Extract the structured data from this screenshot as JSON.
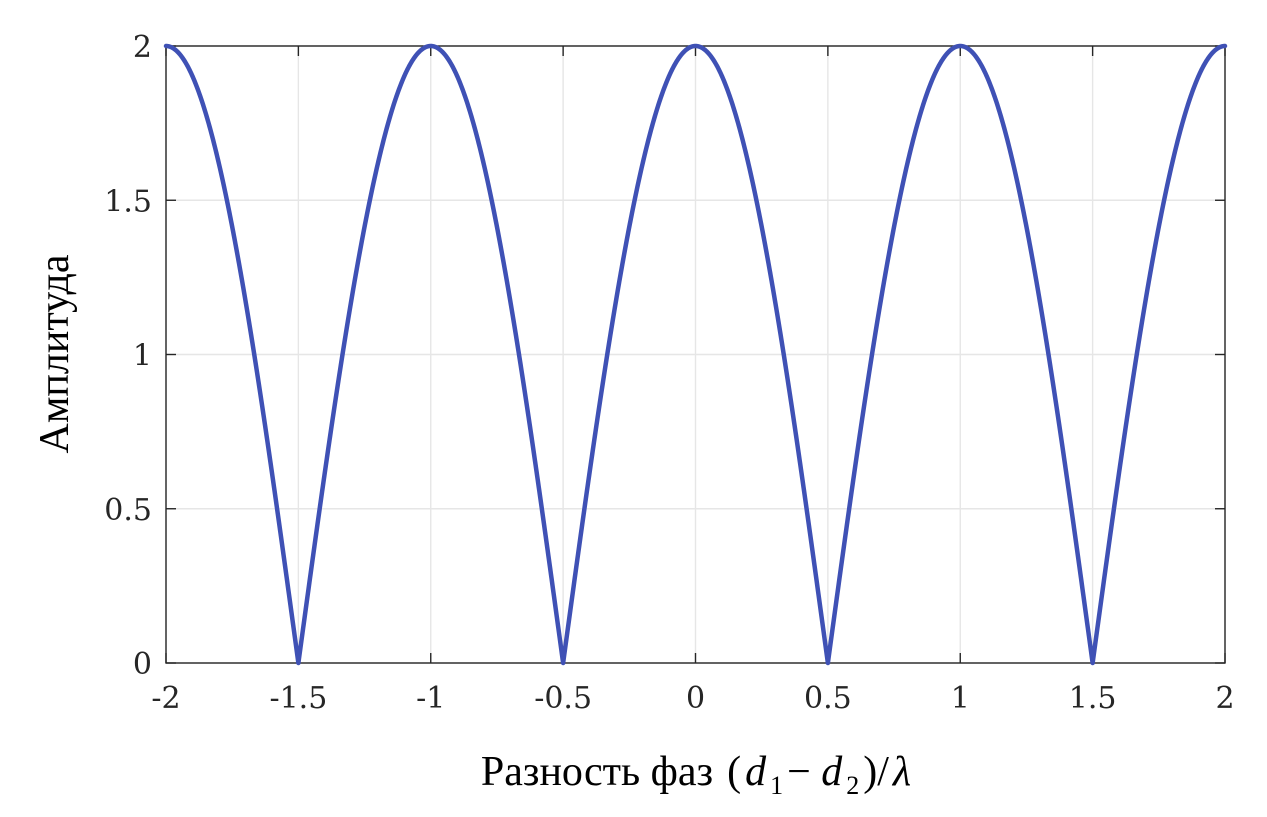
{
  "chart_data": {
    "type": "line",
    "title": "",
    "xlabel": {
      "text": "Разность фаз",
      "open_paren": "(",
      "d": "d",
      "sub1": "1",
      "minus": " − ",
      "sub2": "2",
      "close_div": ")/",
      "lambda": "λ"
    },
    "ylabel": "Амплитуда",
    "xlim": [
      -2,
      2
    ],
    "ylim": [
      0,
      2
    ],
    "xticks": [
      -2,
      -1.5,
      -1,
      -0.5,
      0,
      0.5,
      1,
      1.5,
      2
    ],
    "xtick_labels": [
      "-2",
      "-1.5",
      "-1",
      "-0.5",
      "0",
      "0.5",
      "1",
      "1.5",
      "2"
    ],
    "yticks": [
      0,
      0.5,
      1,
      1.5,
      2
    ],
    "ytick_labels": [
      "0",
      "0.5",
      "1",
      "1.5",
      "2"
    ],
    "grid": true,
    "series": [
      {
        "function": "2*|cos(pi*x)|",
        "x_start": -2,
        "x_end": 2,
        "color": "#3f51b5",
        "zeros_x": [
          -1.5,
          -0.5,
          0.5,
          1.5
        ],
        "peaks_x": [
          -2,
          -1,
          0,
          1,
          2
        ],
        "peak_value": 2
      }
    ]
  },
  "colors": {
    "line": "#3f51b5",
    "grid": "#e6e6e6",
    "axes": "#262626"
  }
}
